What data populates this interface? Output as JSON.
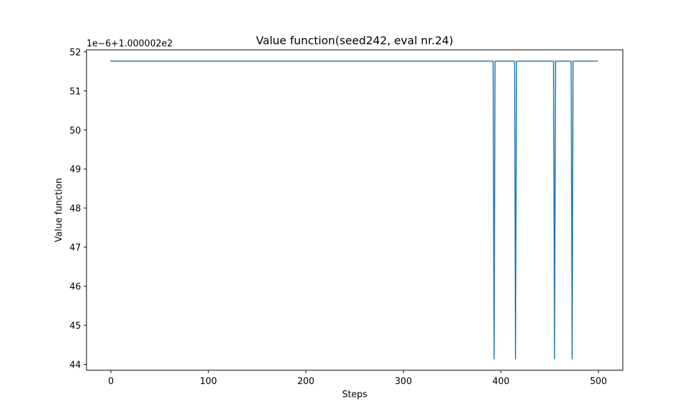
{
  "chart_data": {
    "type": "line",
    "title": "Value function(seed242, eval nr.24)",
    "xlabel": "Steps",
    "ylabel": "Value function",
    "offset_text": "1e−6+1.000002e2",
    "xlim": [
      -25,
      525
    ],
    "ylim": [
      43.85,
      52.05
    ],
    "x_ticks": [
      0,
      100,
      200,
      300,
      400,
      500
    ],
    "y_ticks": [
      44,
      45,
      46,
      47,
      48,
      49,
      50,
      51,
      52
    ],
    "grid": false,
    "series_color": "#1f77b4",
    "series": [
      {
        "x": [
          0,
          392,
          393,
          394,
          414,
          415,
          416,
          454,
          455,
          456,
          472,
          473,
          474,
          499
        ],
        "y": [
          51.76,
          51.76,
          44.14,
          51.76,
          51.76,
          44.14,
          51.76,
          51.76,
          44.14,
          51.76,
          51.76,
          44.14,
          51.76,
          51.76
        ]
      }
    ]
  }
}
